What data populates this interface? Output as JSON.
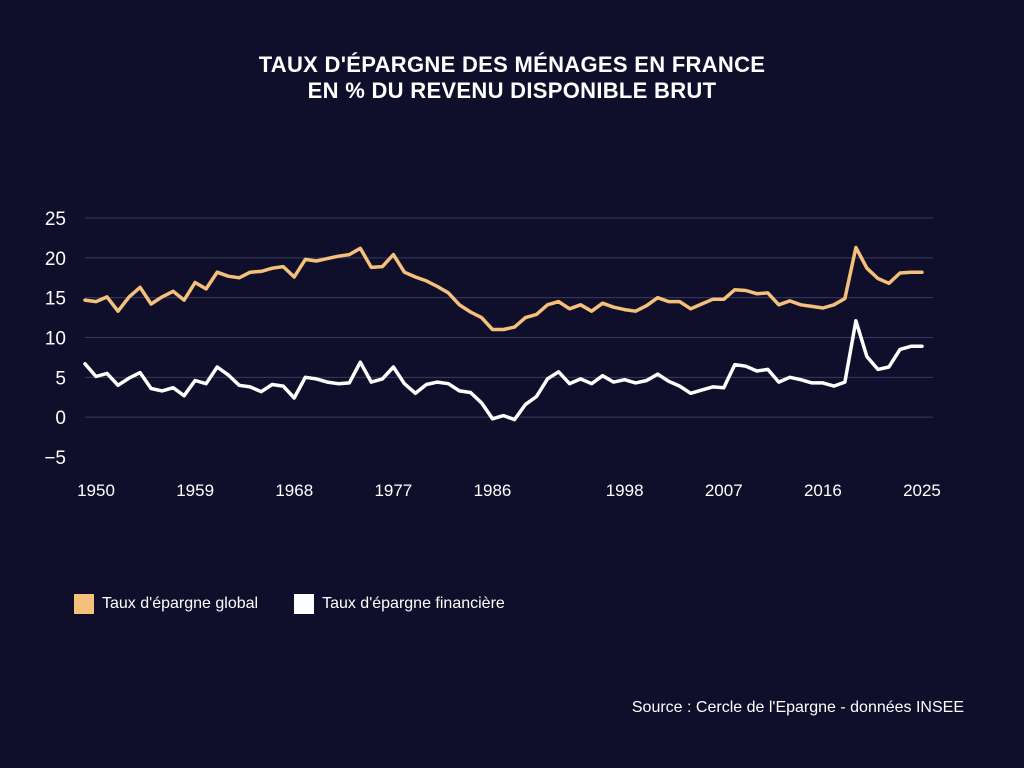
{
  "title": {
    "line1": "TAUX D'ÉPARGNE DES MÉNAGES EN FRANCE",
    "line2": "EN % DU REVENU DISPONIBLE BRUT"
  },
  "colors": {
    "background": "#0f0f2b",
    "global": "#f5c07a",
    "financiere": "#ffffff",
    "grid": "#3a3a5e"
  },
  "legend": {
    "global_label": "Taux d'épargne global",
    "financiere_label": "Taux d'épargne financière"
  },
  "source": "Source : Cercle de l'Epargne - données INSEE",
  "chart_data": {
    "type": "line",
    "title": "TAUX D'ÉPARGNE DES MÉNAGES EN FRANCE — EN % DU REVENU DISPONIBLE BRUT",
    "xlabel": "",
    "ylabel": "",
    "xlim": [
      1949,
      2026
    ],
    "ylim": [
      -5,
      25
    ],
    "yticks": [
      25,
      20,
      15,
      10,
      5,
      0,
      -5
    ],
    "xticks": [
      1950,
      1959,
      1968,
      1977,
      1986,
      1998,
      2007,
      2016,
      2025
    ],
    "grid": true,
    "legend_position": "bottom-left",
    "x": [
      1949,
      1950,
      1951,
      1952,
      1953,
      1954,
      1955,
      1956,
      1957,
      1958,
      1959,
      1960,
      1961,
      1962,
      1963,
      1964,
      1965,
      1966,
      1967,
      1968,
      1969,
      1970,
      1971,
      1972,
      1973,
      1974,
      1975,
      1976,
      1977,
      1978,
      1979,
      1980,
      1981,
      1982,
      1983,
      1984,
      1985,
      1986,
      1987,
      1988,
      1989,
      1990,
      1991,
      1992,
      1993,
      1994,
      1995,
      1996,
      1997,
      1998,
      1999,
      2000,
      2001,
      2002,
      2003,
      2004,
      2005,
      2006,
      2007,
      2008,
      2009,
      2010,
      2011,
      2012,
      2013,
      2014,
      2015,
      2016,
      2017,
      2018,
      2019,
      2020,
      2021,
      2022,
      2023,
      2024,
      2025
    ],
    "series": [
      {
        "name": "Taux d'épargne global",
        "color": "#f5c07a",
        "values": [
          14.7,
          14.5,
          15.1,
          13.3,
          15.1,
          16.3,
          14.2,
          15.1,
          15.8,
          14.7,
          16.9,
          16.1,
          18.2,
          17.7,
          17.5,
          18.2,
          18.3,
          18.7,
          18.9,
          17.6,
          19.8,
          19.6,
          19.9,
          20.2,
          20.4,
          21.2,
          18.8,
          18.9,
          20.4,
          18.2,
          17.6,
          17.1,
          16.4,
          15.6,
          14.1,
          13.2,
          12.5,
          11.0,
          11.0,
          11.3,
          12.5,
          12.9,
          14.1,
          14.5,
          13.6,
          14.1,
          13.3,
          14.3,
          13.8,
          13.5,
          13.3,
          14.0,
          15.0,
          14.5,
          14.5,
          13.6,
          14.2,
          14.8,
          14.8,
          16.0,
          15.9,
          15.5,
          15.6,
          14.1,
          14.6,
          14.1,
          13.9,
          13.7,
          14.1,
          14.9,
          21.3,
          18.7,
          17.4,
          16.8,
          18.1,
          18.2,
          18.2
        ]
      },
      {
        "name": "Taux d'épargne financière",
        "color": "#ffffff",
        "values": [
          6.7,
          5.1,
          5.5,
          4.0,
          4.9,
          5.6,
          3.6,
          3.3,
          3.7,
          2.7,
          4.6,
          4.2,
          6.3,
          5.3,
          4.0,
          3.8,
          3.2,
          4.1,
          3.9,
          2.4,
          5.0,
          4.8,
          4.4,
          4.2,
          4.3,
          6.9,
          4.4,
          4.8,
          6.3,
          4.2,
          3.0,
          4.1,
          4.4,
          4.2,
          3.3,
          3.1,
          1.8,
          -0.2,
          0.2,
          -0.3,
          1.6,
          2.6,
          4.8,
          5.7,
          4.2,
          4.8,
          4.2,
          5.2,
          4.4,
          4.7,
          4.3,
          4.6,
          5.4,
          4.5,
          3.9,
          3.0,
          3.4,
          3.8,
          3.7,
          6.6,
          6.4,
          5.8,
          6.0,
          4.4,
          5.0,
          4.7,
          4.3,
          4.3,
          3.9,
          4.4,
          12.1,
          7.6,
          6.0,
          6.3,
          8.5,
          8.9,
          8.9
        ]
      }
    ]
  }
}
